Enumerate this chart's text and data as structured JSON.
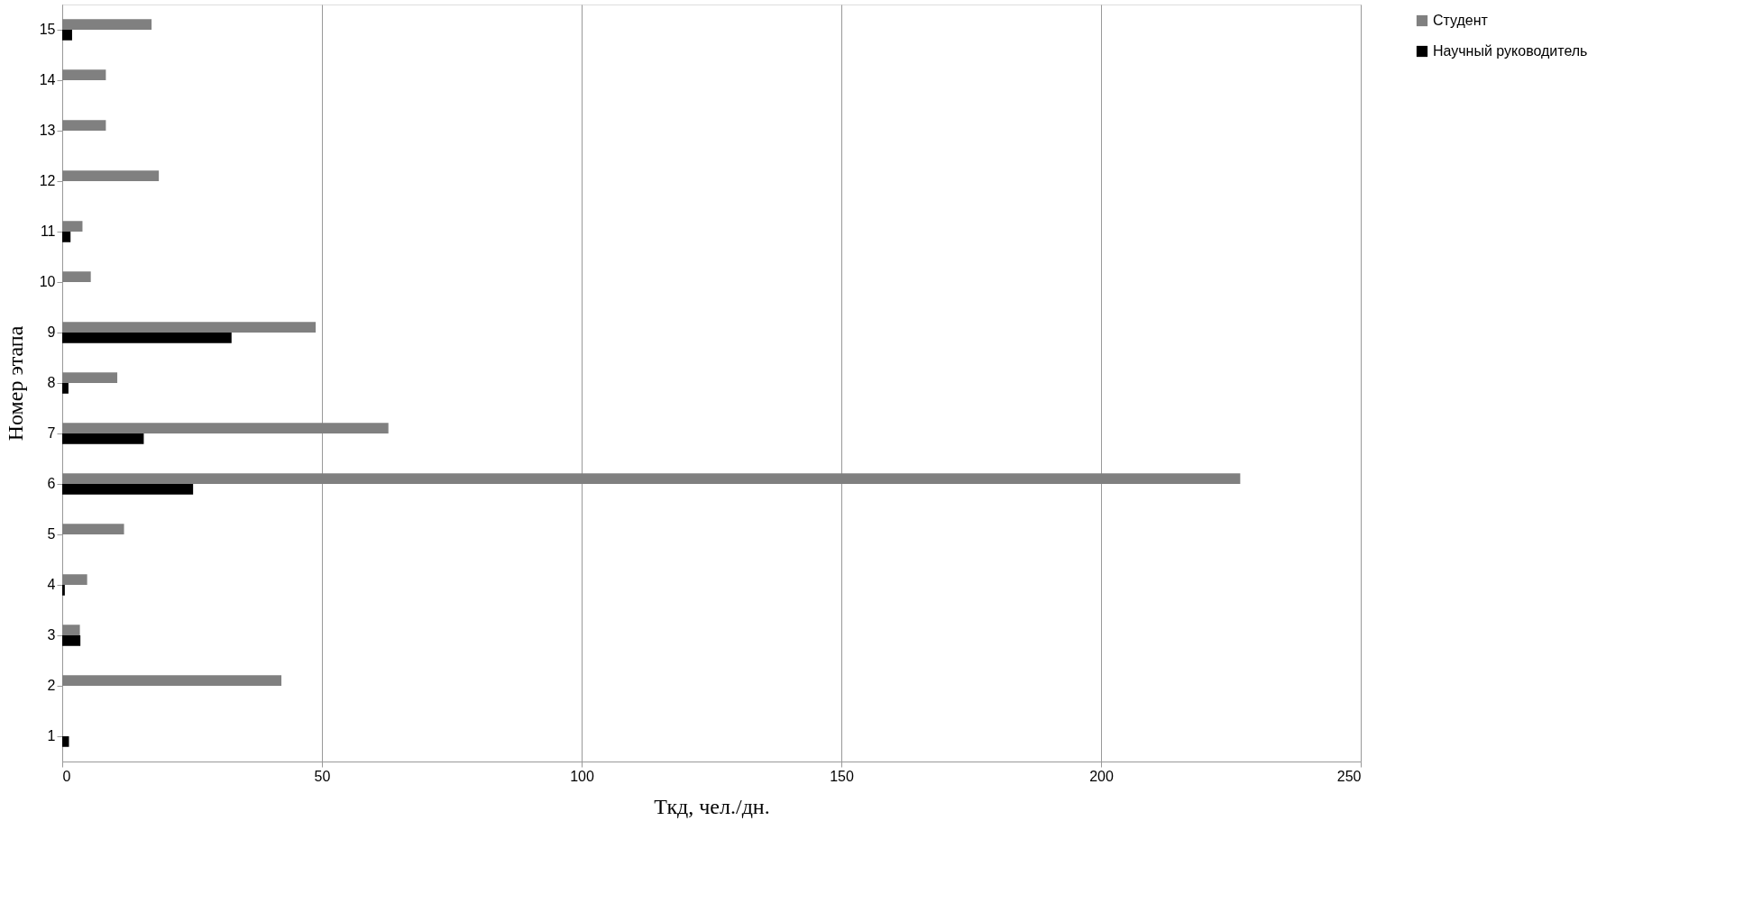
{
  "chart_data": {
    "type": "bar",
    "orientation": "horizontal",
    "xlabel": "Ткд, чел./дн.",
    "ylabel": "Номер этапа",
    "categories": [
      "15",
      "14",
      "13",
      "12",
      "11",
      "10",
      "9",
      "8",
      "7",
      "6",
      "5",
      "4",
      "3",
      "2",
      "1"
    ],
    "series": [
      {
        "name": "Студент",
        "color": "#808080",
        "values": [
          17.2,
          8.4,
          8.4,
          18.6,
          3.9,
          5.5,
          48.8,
          10.6,
          62.8,
          226.8,
          11.9,
          4.8,
          3.4,
          42.2,
          null
        ]
      },
      {
        "name": "Научный руководитель",
        "color": "#000000",
        "values": [
          1.9,
          null,
          null,
          null,
          1.6,
          null,
          32.6,
          1.2,
          15.7,
          25.2,
          null,
          0.5,
          3.5,
          null,
          1.3
        ]
      }
    ],
    "xlim": [
      0,
      250
    ],
    "xticks": [
      0,
      50,
      100,
      150,
      200,
      250
    ],
    "grid": "x",
    "legend": "right"
  }
}
